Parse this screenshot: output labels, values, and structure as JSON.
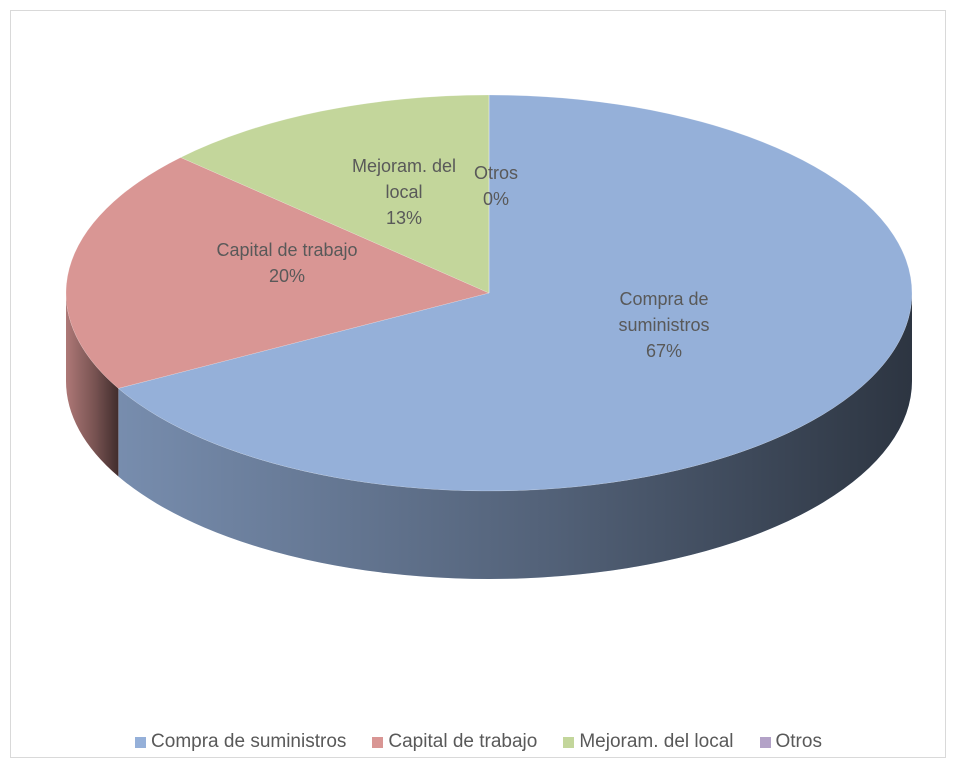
{
  "chart_data": {
    "type": "pie3d",
    "categories": [
      "Compra de suministros",
      "Capital de trabajo",
      "Mejoram. del local",
      "Otros"
    ],
    "values": [
      67,
      20,
      13,
      0
    ],
    "value_labels": [
      "67%",
      "20%",
      "13%",
      "0%"
    ],
    "colors": [
      "#95b0d9",
      "#d99694",
      "#c3d69b",
      "#b3a2c7"
    ],
    "legend": "bottom"
  }
}
